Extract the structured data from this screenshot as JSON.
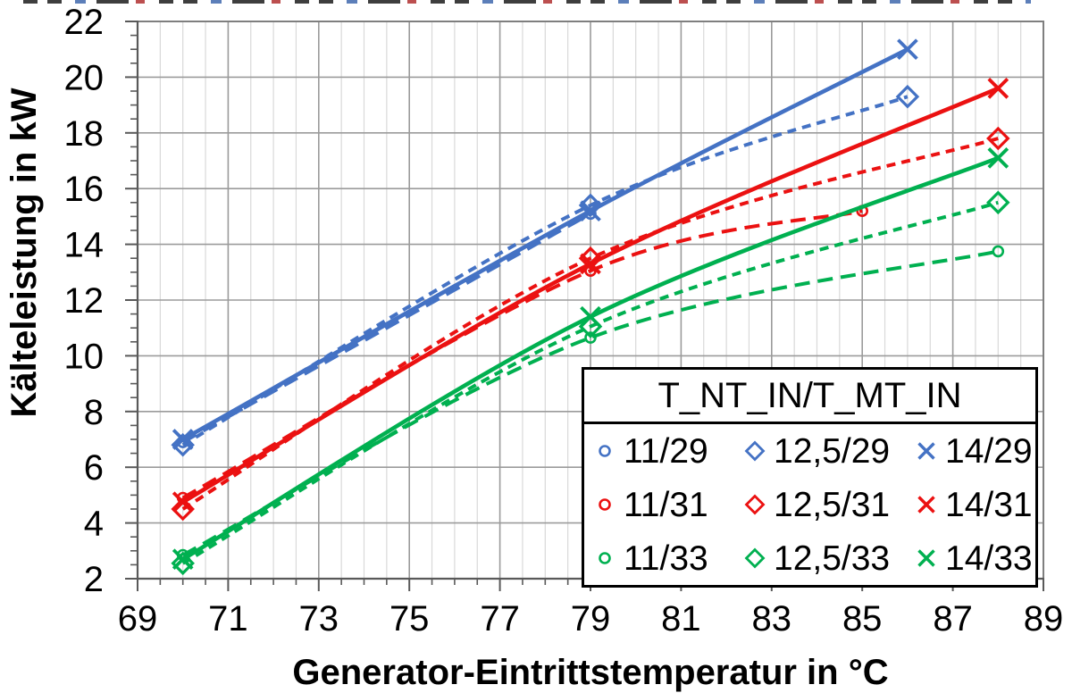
{
  "chart_data": {
    "type": "line",
    "title": "",
    "xlabel": "Generator-Eintrittstemperatur in °C",
    "ylabel": "Kälteleistung in kW",
    "legend_title": "T_NT_IN/T_MT_IN",
    "legend_position": "inside-bottom-right",
    "xlim": [
      69,
      89
    ],
    "ylim": [
      2,
      22
    ],
    "x_ticks": [
      69,
      71,
      73,
      75,
      77,
      79,
      81,
      83,
      85,
      87,
      89
    ],
    "y_ticks": [
      2,
      4,
      6,
      8,
      10,
      12,
      14,
      16,
      18,
      20,
      22
    ],
    "x_minor_step": 0.5,
    "y_minor_step": 0.5,
    "grid": {
      "x_minor_lines": true,
      "x_major_lines": true,
      "y_major_lines": true,
      "y_minor_lines": false
    },
    "colors": {
      "blue": "#4472C4",
      "red": "#EB1111",
      "green": "#00B050"
    },
    "series": [
      {
        "name": "11/29",
        "color_key": "blue",
        "marker": "circle",
        "line": "long-dash",
        "points": [
          [
            70,
            6.9
          ],
          [
            79,
            15.1
          ]
        ]
      },
      {
        "name": "12,5/29",
        "color_key": "blue",
        "marker": "diamond",
        "line": "short-dash",
        "points": [
          [
            70,
            6.8
          ],
          [
            79,
            15.4
          ],
          [
            86,
            19.3
          ]
        ]
      },
      {
        "name": "14/29",
        "color_key": "blue",
        "marker": "x",
        "line": "solid",
        "points": [
          [
            70,
            7.0
          ],
          [
            79,
            15.2
          ],
          [
            86,
            21.0
          ]
        ]
      },
      {
        "name": "11/31",
        "color_key": "red",
        "marker": "circle",
        "line": "long-dash",
        "points": [
          [
            70,
            4.9
          ],
          [
            79,
            13.05
          ],
          [
            85,
            15.2
          ]
        ]
      },
      {
        "name": "12,5/31",
        "color_key": "red",
        "marker": "diamond",
        "line": "short-dash",
        "points": [
          [
            70,
            4.5
          ],
          [
            79,
            13.5
          ],
          [
            88,
            17.8
          ]
        ]
      },
      {
        "name": "14/31",
        "color_key": "red",
        "marker": "x",
        "line": "solid",
        "points": [
          [
            70,
            4.75
          ],
          [
            79,
            13.3
          ],
          [
            88,
            19.6
          ]
        ]
      },
      {
        "name": "11/33",
        "color_key": "green",
        "marker": "circle",
        "line": "long-dash",
        "points": [
          [
            70,
            2.85
          ],
          [
            79,
            10.65
          ],
          [
            88,
            13.75
          ]
        ]
      },
      {
        "name": "12,5/33",
        "color_key": "green",
        "marker": "diamond",
        "line": "short-dash",
        "points": [
          [
            70,
            2.55
          ],
          [
            79,
            11.05
          ],
          [
            88,
            15.5
          ]
        ]
      },
      {
        "name": "14/33",
        "color_key": "green",
        "marker": "x",
        "line": "solid",
        "points": [
          [
            70,
            2.7
          ],
          [
            79,
            11.4
          ],
          [
            88,
            17.1
          ]
        ]
      }
    ],
    "legend_rows": [
      [
        "11/29",
        "12,5/29",
        "14/29"
      ],
      [
        "11/31",
        "12,5/31",
        "14/31"
      ],
      [
        "11/33",
        "12,5/33",
        "14/33"
      ]
    ]
  }
}
